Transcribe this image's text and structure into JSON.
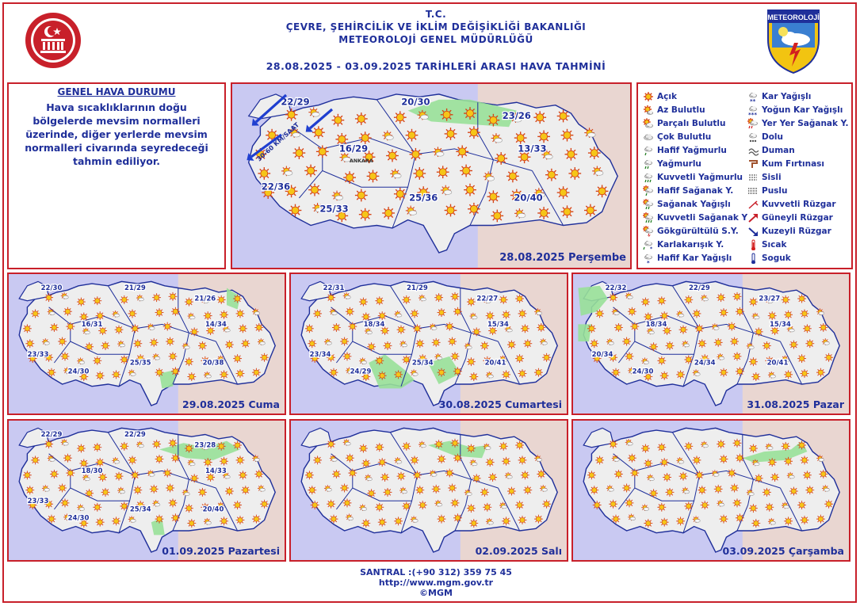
{
  "header": {
    "line1": "T.C.",
    "line2": "ÇEVRE, ŞEHİRCİLİK VE İKLİM DEĞİŞİKLİĞİ BAKANLIĞI",
    "line3": "METEOROLOJİ GENEL MÜDÜRLÜĞÜ",
    "line4": "28.08.2025  -  03.09.2025   TARİHLERİ ARASI HAVA TAHMİNİ",
    "logo_text": "METEOROLOJİ"
  },
  "general": {
    "title": "GENEL HAVA DURUMU",
    "text": "Hava sıcaklıklarının doğu bölgelerde mevsim normalleri üzerinde, diğer yerlerde mevsim normalleri civarında seyredeceği tahmin ediliyor."
  },
  "legend": {
    "col1": [
      {
        "icon": "sun-icon",
        "label": "Açık"
      },
      {
        "icon": "few-clouds-icon",
        "label": "Az Bulutlu"
      },
      {
        "icon": "partly-cloudy-icon",
        "label": "Parçalı Bulutlu"
      },
      {
        "icon": "cloudy-icon",
        "label": "Çok Bulutlu"
      },
      {
        "icon": "light-rain-icon",
        "label": "Hafif Yağmurlu"
      },
      {
        "icon": "rain-icon",
        "label": "Yağmurlu"
      },
      {
        "icon": "heavy-rain-icon",
        "label": "Kuvvetli Yağmurlu"
      },
      {
        "icon": "light-shower-icon",
        "label": "Hafif Sağanak Y."
      },
      {
        "icon": "shower-icon",
        "label": "Sağanak Yağışlı"
      },
      {
        "icon": "heavy-shower-icon",
        "label": "Kuvvetli Sağanak Y"
      },
      {
        "icon": "thunder-icon",
        "label": "Gökgürültülü S.Y."
      },
      {
        "icon": "sleet-icon",
        "label": "Karlakarışık Y."
      },
      {
        "icon": "light-snow-icon",
        "label": "Hafif Kar Yağışlı"
      }
    ],
    "col2": [
      {
        "icon": "snow-icon",
        "label": "Kar Yağışlı"
      },
      {
        "icon": "heavy-snow-icon",
        "label": "Yoğun Kar Yağışlı"
      },
      {
        "icon": "local-shower-icon",
        "label": "Yer Yer Sağanak Y."
      },
      {
        "icon": "hail-icon",
        "label": "Dolu"
      },
      {
        "icon": "smoke-icon",
        "label": "Duman"
      },
      {
        "icon": "sandstorm-icon",
        "label": "Kum Fırtınası"
      },
      {
        "icon": "fog-icon",
        "label": "Sisli"
      },
      {
        "icon": "mist-icon",
        "label": "Puslu"
      },
      {
        "icon": "strong-wind-icon",
        "label": "Kuvvetli Rüzgar"
      },
      {
        "icon": "south-wind-icon",
        "label": "Güneyli Rüzgar"
      },
      {
        "icon": "north-wind-icon",
        "label": "Kuzeyli Rüzgar"
      },
      {
        "icon": "hot-icon",
        "label": "Sıcak"
      },
      {
        "icon": "cold-icon",
        "label": "Soguk"
      }
    ]
  },
  "main_map": {
    "date": "28.08.2025 Perşembe",
    "wind_label": "30-60 KM/SAAT",
    "temps": [
      "22/29",
      "20/30",
      "23/26",
      "16/29",
      "13/33",
      "22/36",
      "25/33",
      "25/36",
      "20/40"
    ],
    "city_labels": [
      "ANKARA"
    ]
  },
  "days": [
    {
      "date": "29.08.2025 Cuma",
      "temps": [
        "22/30",
        "21/29",
        "21/26",
        "16/31",
        "14/34",
        "23/33",
        "24/30",
        "25/35",
        "20/38"
      ]
    },
    {
      "date": "30.08.2025 Cumartesi",
      "temps": [
        "22/31",
        "21/29",
        "22/27",
        "18/34",
        "15/34",
        "23/34",
        "24/29",
        "25/34",
        "20/41"
      ]
    },
    {
      "date": "31.08.2025 Pazar",
      "temps": [
        "22/32",
        "22/29",
        "23/27",
        "18/34",
        "15/34",
        "20/34",
        "24/30",
        "24/34",
        "20/41"
      ]
    },
    {
      "date": "01.09.2025 Pazartesi",
      "temps": [
        "22/29",
        "22/29",
        "23/28",
        "18/30",
        "14/33",
        "23/33",
        "24/30",
        "25/34",
        "20/40"
      ]
    },
    {
      "date": "02.09.2025 Salı",
      "temps": []
    },
    {
      "date": "03.09.2025 Çarşamba",
      "temps": []
    }
  ],
  "footer": {
    "phone": "SANTRAL :(+90 312) 359 75 45",
    "url": "http://www.mgm.gov.tr",
    "copy": "©MGM"
  },
  "colors": {
    "accent_red": "#c8202a",
    "title_blue": "#1f2f9a",
    "sea_blue": "#c9c9f2",
    "land": "#eeeeee",
    "rain_green": "#98e098",
    "east_fill": "#f3d9c6"
  }
}
